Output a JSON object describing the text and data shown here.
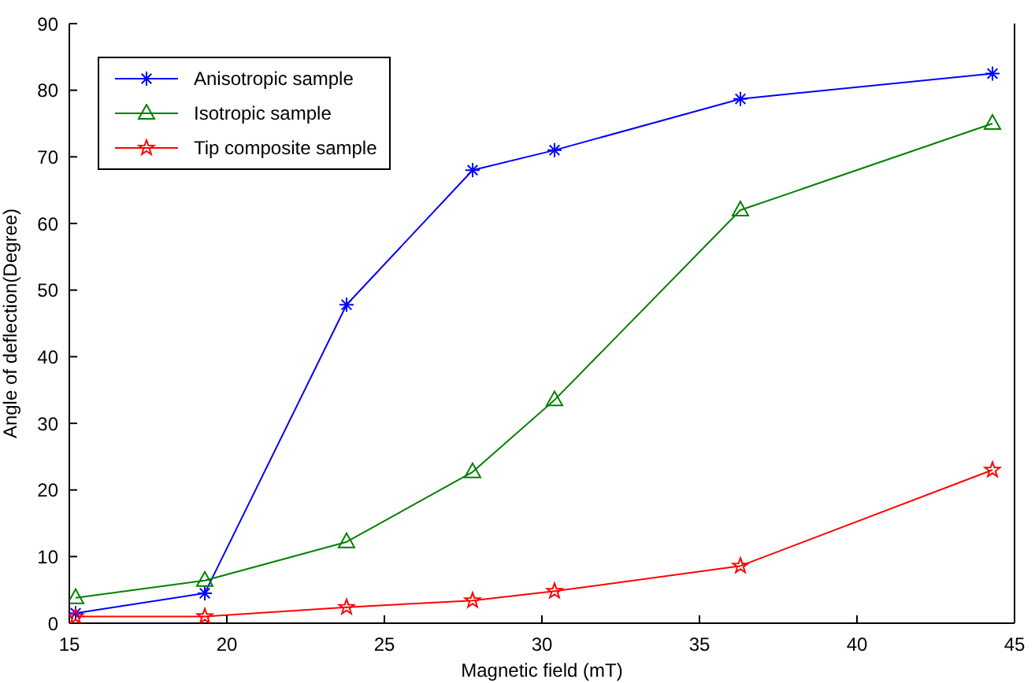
{
  "chart_data": {
    "type": "line",
    "xlabel": "Magnetic field (mT)",
    "ylabel": "Angle of deflection(Degree)",
    "x": [
      15.2,
      19.3,
      23.8,
      27.8,
      30.4,
      36.3,
      44.3
    ],
    "series": [
      {
        "name": "Anisotropic sample",
        "color": "#0000ff",
        "marker": "cross",
        "values": [
          1.5,
          4.5,
          47.8,
          68,
          71,
          78.7,
          82.5
        ]
      },
      {
        "name": "Isotropic sample",
        "color": "#008000",
        "marker": "triangle",
        "values": [
          3.8,
          6.4,
          12.2,
          22.7,
          33.5,
          62,
          75
        ]
      },
      {
        "name": "Tip composite sample",
        "color": "#ff0000",
        "marker": "star",
        "values": [
          1,
          1,
          2.4,
          3.4,
          4.8,
          8.6,
          23
        ]
      }
    ],
    "xlim": [
      15,
      45
    ],
    "xticks": [
      15,
      20,
      25,
      30,
      35,
      40,
      45
    ],
    "ylim": [
      0,
      90
    ],
    "yticks": [
      0,
      10,
      20,
      30,
      40,
      50,
      60,
      70,
      80,
      90
    ],
    "grid": false,
    "legend": "top left",
    "line_style": "solid"
  }
}
